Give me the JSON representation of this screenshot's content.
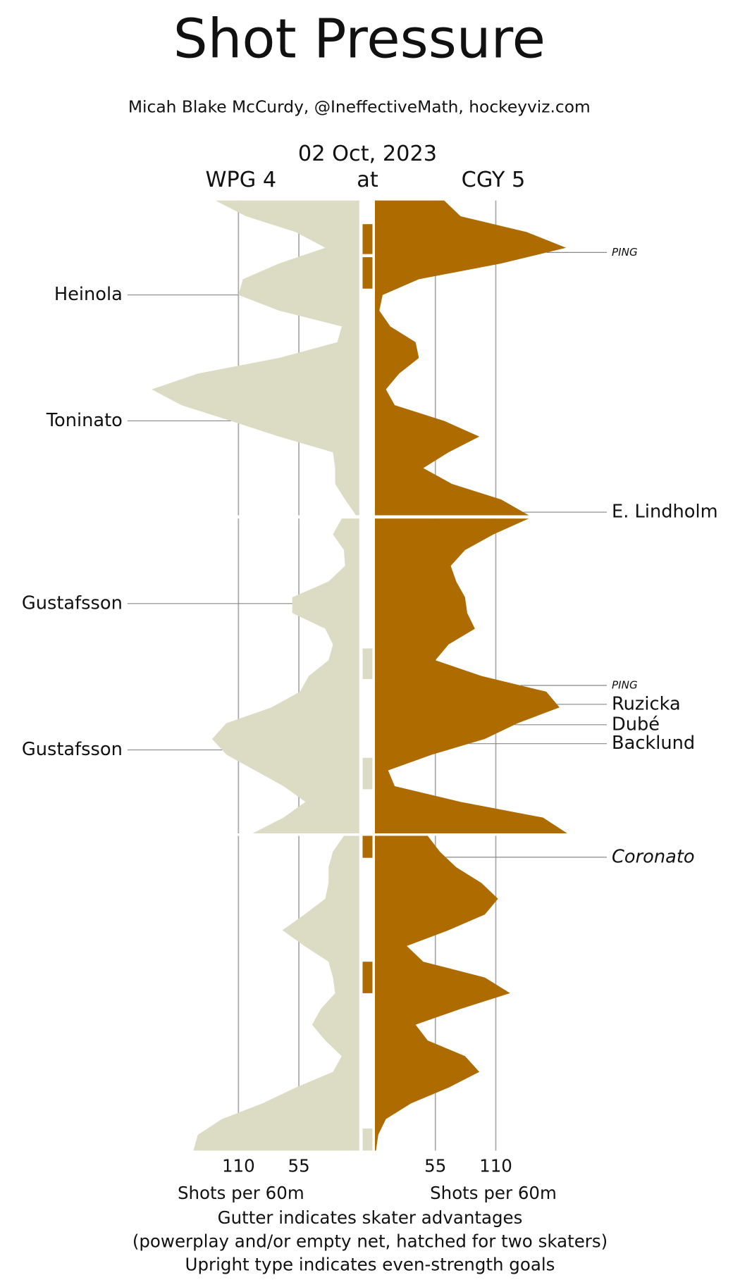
{
  "chart_data": {
    "type": "shot-pressure",
    "title": "Shot Pressure",
    "subtitle": "Micah Blake McCurdy, @IneffectiveMath, hockeyviz.com",
    "date": "02 Oct, 2023",
    "at": "at",
    "xlabel": "Shots per 60m",
    "xlim": [
      0,
      110
    ],
    "xticks": [
      55,
      110
    ],
    "ylim": [
      0,
      20
    ],
    "grid": true,
    "notes": [
      "Gutter indicates skater advantages",
      "(powerplay and/or empty net, hatched for two skaters)",
      "Upright type indicates even-strength goals"
    ],
    "series": [
      {
        "name": "WPG 4",
        "color": "#dcdcc5",
        "side": "left",
        "periods": [
          [
            131,
            103,
            58,
            31,
            73,
            106,
            110,
            73,
            16,
            20,
            73,
            147,
            189,
            162,
            117,
            73,
            24,
            22,
            22,
            13,
            3
          ],
          [
            16,
            24,
            14,
            13,
            28,
            61,
            61,
            31,
            24,
            28,
            46,
            54,
            80,
            121,
            134,
            121,
            95,
            69,
            49,
            69,
            97
          ],
          [
            14,
            24,
            28,
            28,
            31,
            50,
            70,
            50,
            28,
            24,
            22,
            35,
            43,
            31,
            16,
            24,
            58,
            88,
            125,
            147,
            151
          ]
        ]
      },
      {
        "name": "CGY 5",
        "color": "#ad6b00",
        "side": "right",
        "periods": [
          [
            63,
            78,
            138,
            174,
            115,
            40,
            7,
            4,
            14,
            37,
            40,
            22,
            10,
            18,
            63,
            95,
            67,
            44,
            70,
            115,
            140
          ],
          [
            140,
            108,
            82,
            69,
            74,
            82,
            84,
            91,
            67,
            55,
            97,
            156,
            168,
            130,
            100,
            52,
            12,
            18,
            78,
            153,
            175
          ],
          [
            48,
            59,
            74,
            97,
            112,
            100,
            67,
            29,
            44,
            100,
            123,
            78,
            37,
            48,
            82,
            95,
            67,
            33,
            10,
            3,
            1
          ]
        ]
      }
    ],
    "gutter": [
      {
        "team": 1,
        "period": 0,
        "start": 1.5,
        "end": 3.4
      },
      {
        "team": 1,
        "period": 0,
        "start": 3.6,
        "end": 5.6
      },
      {
        "team": 0,
        "period": 1,
        "start": 8.25,
        "end": 10.2
      },
      {
        "team": 0,
        "period": 1,
        "start": 15.2,
        "end": 17.2
      },
      {
        "team": 1,
        "period": 2,
        "start": 0,
        "end": 1.4
      },
      {
        "team": 1,
        "period": 2,
        "start": 8.0,
        "end": 10.0
      },
      {
        "team": 0,
        "period": 2,
        "start": 18.6,
        "end": 20
      }
    ],
    "goals": [
      {
        "name": "PING",
        "team": 1,
        "period": 0,
        "minute": 3.3,
        "style": "small-italic"
      },
      {
        "name": "Heinola",
        "team": 0,
        "period": 0,
        "minute": 6.0,
        "style": "upright"
      },
      {
        "name": "Toninato",
        "team": 0,
        "period": 0,
        "minute": 14.0,
        "style": "upright"
      },
      {
        "name": "E. Lindholm",
        "team": 1,
        "period": 0,
        "minute": 19.8,
        "style": "upright"
      },
      {
        "name": "Gustafsson",
        "team": 0,
        "period": 1,
        "minute": 5.4,
        "style": "upright"
      },
      {
        "name": "PING",
        "team": 1,
        "period": 1,
        "minute": 10.6,
        "style": "small-italic"
      },
      {
        "name": "Ruzicka",
        "team": 1,
        "period": 1,
        "minute": 11.8,
        "style": "upright"
      },
      {
        "name": "Dubé",
        "team": 1,
        "period": 1,
        "minute": 13.1,
        "style": "upright"
      },
      {
        "name": "Backlund",
        "team": 1,
        "period": 1,
        "minute": 14.3,
        "style": "upright"
      },
      {
        "name": "Gustafsson",
        "team": 0,
        "period": 1,
        "minute": 14.7,
        "style": "upright"
      },
      {
        "name": "Coronato",
        "team": 1,
        "period": 2,
        "minute": 1.36,
        "style": "italic"
      }
    ]
  }
}
